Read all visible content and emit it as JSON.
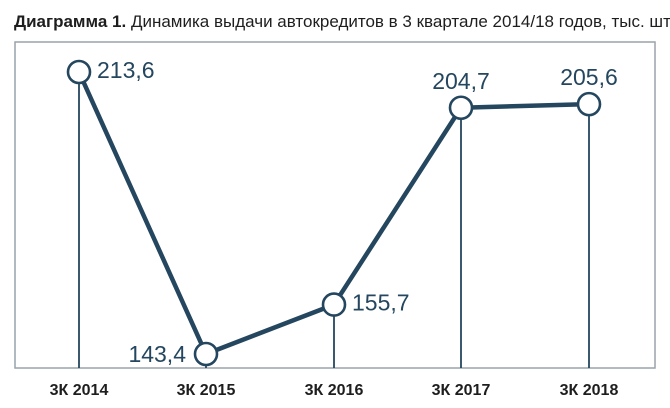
{
  "title": {
    "prefix": "Диаграмма 1.",
    "text": "Динамика выдачи автокредитов в 3 квартале 2014/18 годов, тыс. шт."
  },
  "colors": {
    "line": "#24465e",
    "frame": "#9aa3aa",
    "marker_fill": "#ffffff"
  },
  "chart_data": {
    "type": "line",
    "categories": [
      "3К 2014",
      "3К 2015",
      "3К 2016",
      "3К 2017",
      "3К 2018"
    ],
    "values": [
      213.6,
      143.4,
      155.7,
      204.7,
      205.6
    ],
    "value_labels": [
      "213,6",
      "143,4",
      "155,7",
      "204,7",
      "205,6"
    ],
    "label_position": [
      "right",
      "left",
      "right",
      "top",
      "top"
    ],
    "title": "Динамика выдачи автокредитов в 3 квартале 2014/18 годов, тыс. шт.",
    "xlabel": "",
    "ylabel": "",
    "ylim": [
      138,
      218
    ],
    "grid": false,
    "legend": "none",
    "drop_lines": true
  }
}
